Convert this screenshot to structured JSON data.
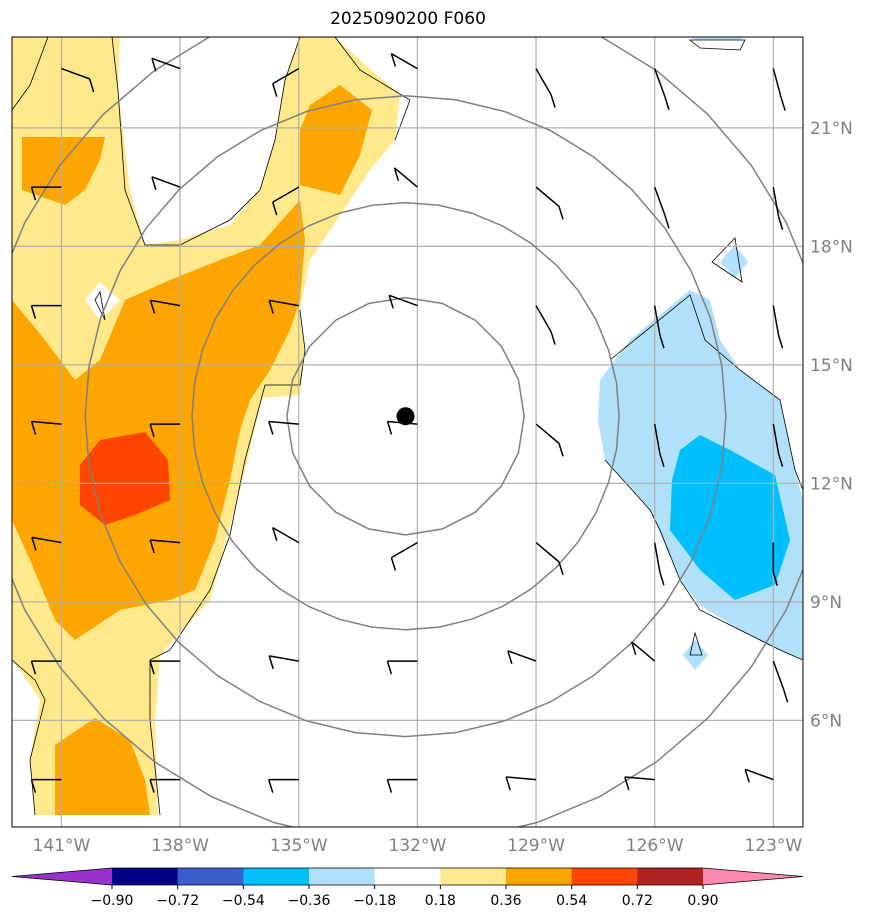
{
  "title": "2025090200 F060",
  "map": {
    "lon_range": [
      -142.25,
      -122.25
    ],
    "lat_range": [
      3.3,
      23.3
    ],
    "lon_ticks": [
      {
        "value": -141,
        "label": "141°W"
      },
      {
        "value": -138,
        "label": "138°W"
      },
      {
        "value": -135,
        "label": "135°W"
      },
      {
        "value": -132,
        "label": "132°W"
      },
      {
        "value": -129,
        "label": "129°W"
      },
      {
        "value": -126,
        "label": "126°W"
      },
      {
        "value": -123,
        "label": "123°W"
      }
    ],
    "lat_ticks": [
      {
        "value": 21,
        "label": "21°N"
      },
      {
        "value": 18,
        "label": "18°N"
      },
      {
        "value": 15,
        "label": "15°N"
      },
      {
        "value": 12,
        "label": "12°N"
      },
      {
        "value": 9,
        "label": "9°N"
      },
      {
        "value": 6,
        "label": "6°N"
      }
    ],
    "storm_center": {
      "lon": -132.3,
      "lat": 13.7
    },
    "range_rings_deg": [
      3,
      5.4,
      8.1,
      10.8
    ],
    "grid": true
  },
  "colorbar": {
    "levels": [
      "−0.90",
      "−0.72",
      "−0.54",
      "−0.36",
      "−0.18",
      "0.18",
      "0.36",
      "0.54",
      "0.72",
      "0.90"
    ],
    "colors": [
      "#9932cc",
      "#00008b",
      "#3a5fcd",
      "#00bfff",
      "#b0e0fa",
      "#ffffff",
      "#ffe98a",
      "#ffa500",
      "#ff4500",
      "#b22222",
      "#ff88b0"
    ]
  },
  "colors": {
    "grid": "#b0b0b0",
    "ring": "#808080",
    "label": "#808080"
  }
}
